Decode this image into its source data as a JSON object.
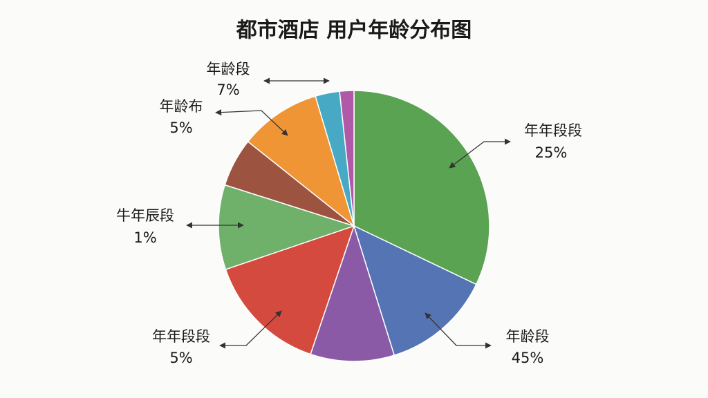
{
  "chart_data": {
    "type": "pie",
    "title": "都市酒店  用户年龄分布图",
    "values": [
      32.1,
      13.1,
      10,
      14.6,
      10.1,
      5.8,
      9.7,
      2.9,
      1.7
    ],
    "colors": [
      "#5aa352",
      "#5574b3",
      "#8a5aa6",
      "#d44a3e",
      "#6fb06b",
      "#9c5440",
      "#ef9535",
      "#47a9c4",
      "#b059a8"
    ],
    "annotations": [
      {
        "name": "年龄段",
        "text": "7%"
      },
      {
        "name": "年龄布",
        "text": "5%"
      },
      {
        "name": "年年段段",
        "text": "25%"
      },
      {
        "name": "牛年辰段",
        "text": "1%"
      },
      {
        "name": "年年段段",
        "text": "5%"
      },
      {
        "name": "年龄段",
        "text": "45%"
      }
    ]
  }
}
